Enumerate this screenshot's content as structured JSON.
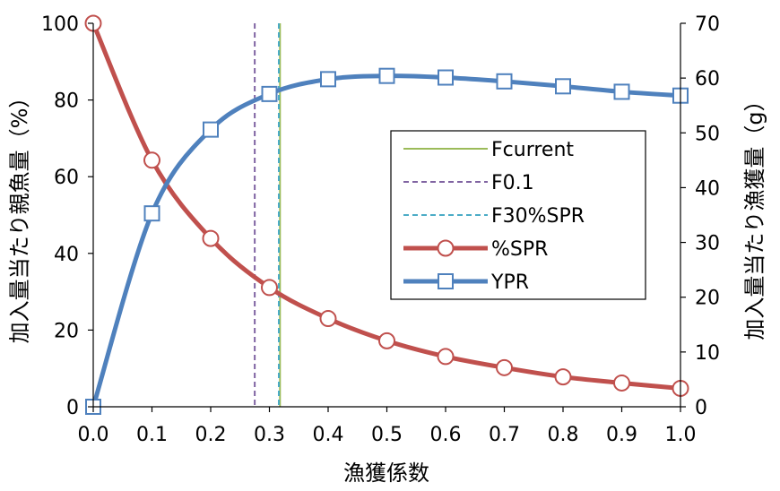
{
  "chart_data": {
    "type": "line",
    "title": "",
    "xlabel": "漁獲係数",
    "ylabel_left": "加入量当たり親魚量（%）",
    "ylabel_right": "加入量当たり漁獲量（g）",
    "x": [
      0.0,
      0.1,
      0.2,
      0.3,
      0.4,
      0.5,
      0.6,
      0.7,
      0.8,
      0.9,
      1.0
    ],
    "x_tick_labels": [
      "0.0",
      "0.1",
      "0.2",
      "0.3",
      "0.4",
      "0.5",
      "0.6",
      "0.7",
      "0.8",
      "0.9",
      "1.0"
    ],
    "xlim": [
      0,
      1
    ],
    "ylim_left": [
      0,
      100
    ],
    "ylim_right": [
      0,
      70
    ],
    "y_left_ticks": [
      0,
      20,
      40,
      60,
      80,
      100
    ],
    "y_right_ticks": [
      0,
      10,
      20,
      30,
      40,
      50,
      60,
      70
    ],
    "grid": false,
    "legend_position": "right",
    "series": [
      {
        "name": "%SPR",
        "axis": "left",
        "color": "#C0504D",
        "marker": "circle",
        "values": [
          100,
          64.3,
          43.9,
          31.1,
          23.0,
          17.2,
          13.1,
          10.2,
          7.8,
          6.2,
          4.8
        ]
      },
      {
        "name": "YPR",
        "axis": "right",
        "color": "#4F81BD",
        "marker": "square",
        "values": [
          0,
          35.3,
          50.6,
          57.1,
          59.8,
          60.4,
          60.1,
          59.4,
          58.5,
          57.5,
          56.8
        ]
      }
    ],
    "reference_lines": [
      {
        "name": "Fcurrent",
        "x": 0.318,
        "color": "#9BBB59",
        "style": "solid"
      },
      {
        "name": "F0.1",
        "x": 0.275,
        "color": "#8064A2",
        "style": "dashed"
      },
      {
        "name": "F30%SPR",
        "x": 0.316,
        "color": "#4BACC6",
        "style": "dashed"
      }
    ]
  }
}
